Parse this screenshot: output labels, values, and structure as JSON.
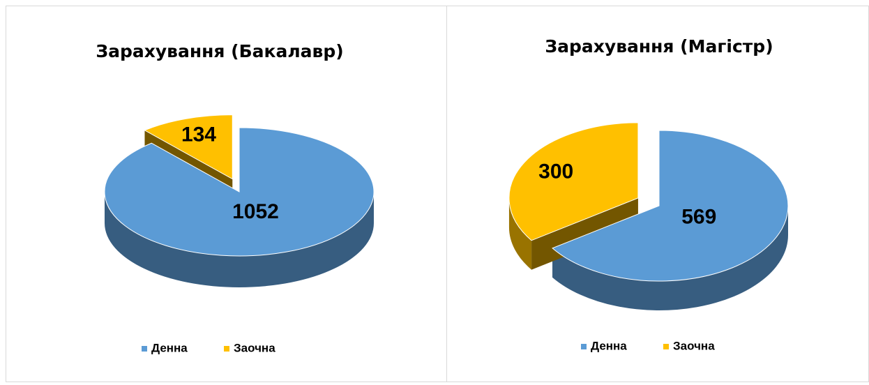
{
  "chart_data": [
    {
      "type": "pie",
      "title": "Зарахування (Бакалавр)",
      "categories": [
        "Денна",
        "Заочна"
      ],
      "values": [
        1052,
        134
      ],
      "colors": [
        "#5b9bd5",
        "#ffc000"
      ],
      "legend": "bottom"
    },
    {
      "type": "pie",
      "title": "Зарахування (Магістр)",
      "categories": [
        "Денна",
        "Заочна"
      ],
      "values": [
        569,
        300
      ],
      "colors": [
        "#5b9bd5",
        "#ffc000"
      ],
      "legend": "bottom"
    }
  ]
}
